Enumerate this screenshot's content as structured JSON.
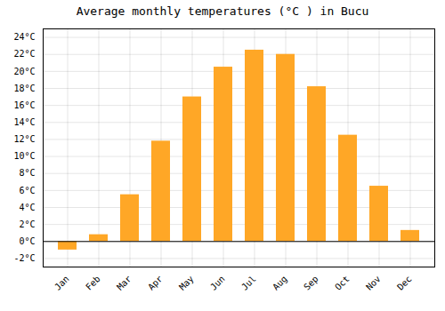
{
  "chart_data": {
    "type": "bar",
    "title": "Average monthly temperatures (°C ) in Bucu",
    "categories": [
      "Jan",
      "Feb",
      "Mar",
      "Apr",
      "May",
      "Jun",
      "Jul",
      "Aug",
      "Sep",
      "Oct",
      "Nov",
      "Dec"
    ],
    "values": [
      -1.0,
      0.8,
      5.5,
      11.8,
      17.0,
      20.5,
      22.5,
      22.0,
      18.2,
      12.5,
      6.5,
      1.3
    ],
    "color": "#FFA726",
    "ylim": [
      -3,
      25
    ],
    "yticks": [
      {
        "value": -2,
        "label": "-2°C"
      },
      {
        "value": 0,
        "label": "0°C"
      },
      {
        "value": 2,
        "label": "2°C"
      },
      {
        "value": 4,
        "label": "4°C"
      },
      {
        "value": 6,
        "label": "6°C"
      },
      {
        "value": 8,
        "label": "8°C"
      },
      {
        "value": 10,
        "label": "10°C"
      },
      {
        "value": 12,
        "label": "12°C"
      },
      {
        "value": 14,
        "label": "14°C"
      },
      {
        "value": 16,
        "label": "16°C"
      },
      {
        "value": 18,
        "label": "18°C"
      },
      {
        "value": 20,
        "label": "20°C"
      },
      {
        "value": 22,
        "label": "22°C"
      },
      {
        "value": 24,
        "label": "24°C"
      }
    ],
    "grid": true
  }
}
